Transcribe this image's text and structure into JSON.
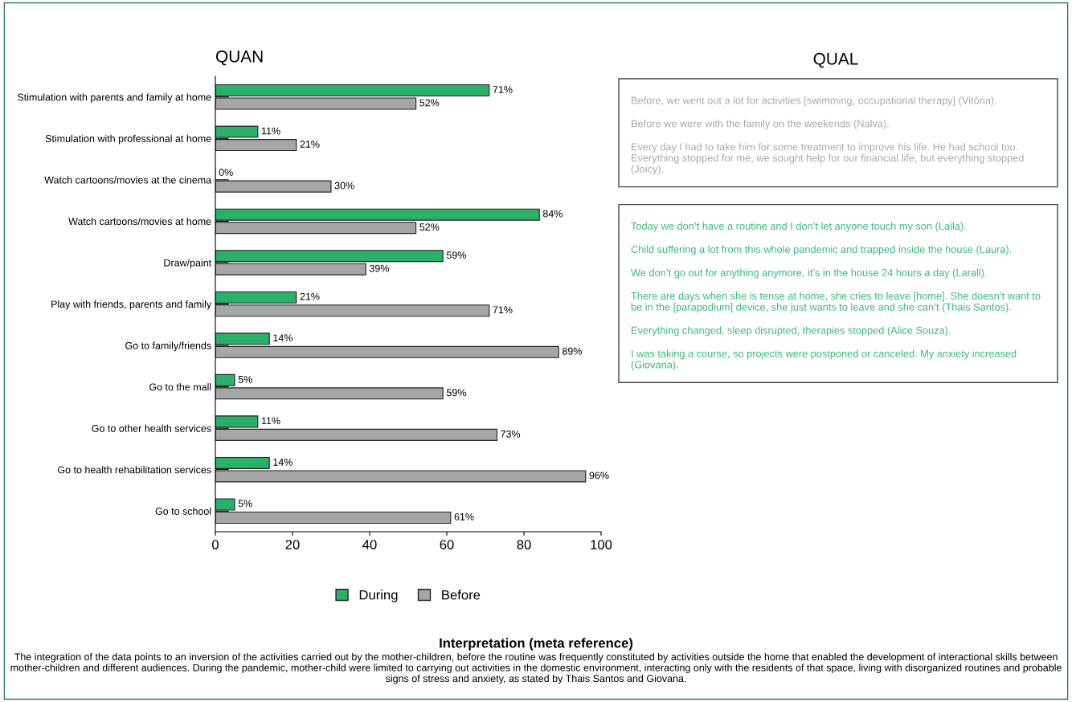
{
  "chart_data": [
    {
      "type": "bar",
      "orientation": "horizontal",
      "title": "QUAN",
      "categories": [
        "Stimulation with parents and family at home",
        "Stimulation with professional at home",
        "Watch cartoons/movies at the cinema",
        "Watch cartoons/movies at home",
        "Draw/paint",
        "Play with friends, parents and family",
        "Go to family/friends",
        "Go to the mall",
        "Go to other health services",
        "Go to health rehabilitation services",
        "Go to school"
      ],
      "series": [
        {
          "name": "During",
          "color": "#2bb069",
          "values": [
            71,
            11,
            0,
            84,
            59,
            21,
            14,
            5,
            11,
            14,
            5
          ],
          "value_labels": [
            "71%",
            "11%",
            "0%",
            "84%",
            "59%",
            "21%",
            "14%",
            "5%",
            "11%",
            "14%",
            "5%"
          ]
        },
        {
          "name": "Before",
          "color": "#a6a6a6",
          "values": [
            52,
            21,
            30,
            52,
            39,
            71,
            89,
            59,
            73,
            96,
            61
          ],
          "value_labels": [
            "52%",
            "21%",
            "30%",
            "52%",
            "39%",
            "71%",
            "89%",
            "59%",
            "73%",
            "96%",
            "61%"
          ]
        }
      ],
      "xlim": [
        0,
        100
      ],
      "xticks": [
        0,
        20,
        40,
        60,
        80,
        100
      ],
      "grid": false,
      "legend": "bottom",
      "annotations": [
        "Interpretation (meta reference)",
        "The integration of the data points to an inversion of the activities carried out by the mother-children, before the routine was frequently constituted by activities outside the home that enabled the development of interactional skills between mother-children and different audiences. During the pandemic, mother-child were limited to carrying out activities in the domestic environment, interacting only with the residents of that space, living with disorganized routines and probable signs of stress and anxiety, as stated by Thais Santos and Giovana."
      ]
    },
    {
      "type": "other",
      "title": "QUAL",
      "annotations": [
        "Before, we went out a lot for activities [swimming, occupational therapy] (Vitória).",
        "Before we were with the family on the weekends (Nalva).",
        "Every day I had to take him for some treatment to improve his life. He had school too. Everything stopped for me, we sought help for our financial life, but everything stopped (Joicy).",
        "Today we don’t have a routine and I don’t let anyone touch my son (Laila).",
        "Child suffering a lot from this whole pandemic and trapped inside the house (Laura).",
        "We don’t go out for anything anymore, it’s in the house 24 hours a day (Larall).",
        "There are days when she is tense at home, she cries to leave [home]. She doesn’t want to be in the [parapodium] device, she just wants to leave and she can’t (Thais Santos).",
        "Everything changed, sleep disrupted, therapies stopped (Alice Souza).",
        "I was taking a course, so projects were postponed or canceled. My anxiety increased (Giovana)."
      ],
      "colors": [
        "#a8a8a8",
        "#a8a8a8",
        "#a8a8a8",
        "#3cb878",
        "#3cb878",
        "#3cb878",
        "#3cb878",
        "#3cb878",
        "#3cb878"
      ]
    }
  ]
}
